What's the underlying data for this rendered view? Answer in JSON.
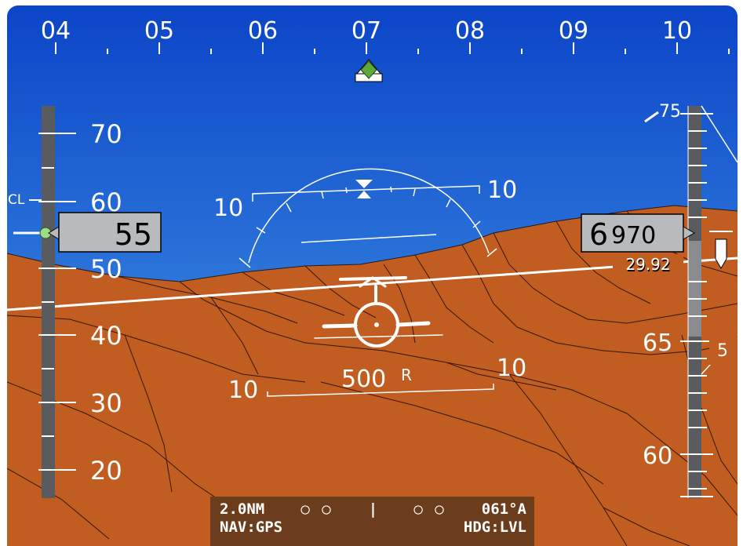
{
  "heading_tape": {
    "labels": [
      "04",
      "05",
      "06",
      "07",
      "08",
      "09",
      "10"
    ]
  },
  "airspeed_tape": {
    "labels": [
      "70",
      "60",
      "50",
      "40",
      "30",
      "20"
    ],
    "marker_label": "CL",
    "current_value": "55"
  },
  "attitude": {
    "pitch_upper_left": "10",
    "pitch_upper_right": "10",
    "pitch_lower_left": "10",
    "pitch_lower_right": "10",
    "radar_alt": "500",
    "radar_alt_suffix": "R"
  },
  "altitude_tape": {
    "label_top": "75",
    "label_65": "65",
    "label_60": "60",
    "current_value_big": "6",
    "current_value_small": "970",
    "baro_setting": "29.92",
    "vsi_value": "5"
  },
  "nav_box": {
    "distance": "2.0NM",
    "left_dots": "○ ○",
    "center_bar": "|",
    "right_dots": "○ ○",
    "course": "061°A",
    "nav_source": "NAV:GPS",
    "heading_mode": "HDG:LVL"
  },
  "colors": {
    "sky_top": "#0c45c8",
    "sky_bottom": "#4aa2ea",
    "terrain": "#c15d20",
    "tape": "#595b5e",
    "readout_box": "#b8babd",
    "nav_box": "#6b3d1c",
    "waypoint_marker": "#5fa83c"
  }
}
